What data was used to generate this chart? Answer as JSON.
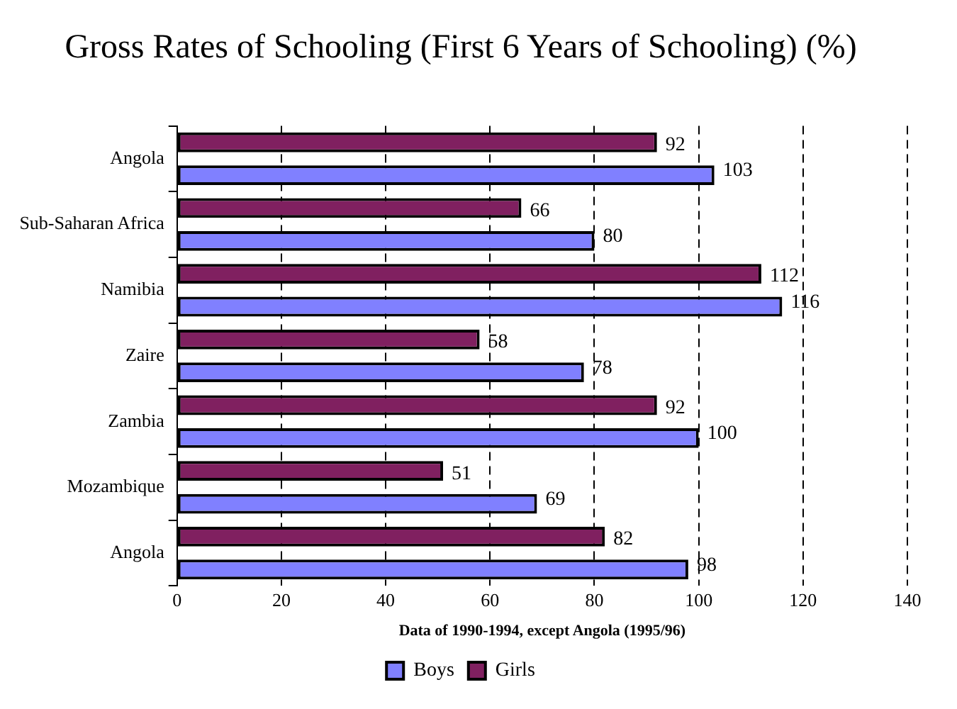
{
  "chart_data": {
    "type": "bar",
    "orientation": "horizontal",
    "title": "Gross Rates of Schooling (First 6 Years of Schooling) (%)",
    "xlabel": "Data of 1990-1994, except Angola (1995/96)",
    "categories": [
      "Angola",
      "Sub-Saharan Africa",
      "Namibia",
      "Zaire",
      "Zambia",
      "Mozambique",
      "Angola"
    ],
    "series": [
      {
        "name": "Boys",
        "color": "#8080ff",
        "values": [
          103,
          80,
          116,
          78,
          100,
          69,
          98
        ]
      },
      {
        "name": "Girls",
        "color": "#802060",
        "values": [
          92,
          66,
          112,
          58,
          92,
          51,
          82
        ]
      }
    ],
    "xlim": [
      0,
      140
    ],
    "xticks": [
      0,
      20,
      40,
      60,
      80,
      100,
      120,
      140
    ],
    "grid": "x",
    "legend": "bottom",
    "data_labels": true
  }
}
